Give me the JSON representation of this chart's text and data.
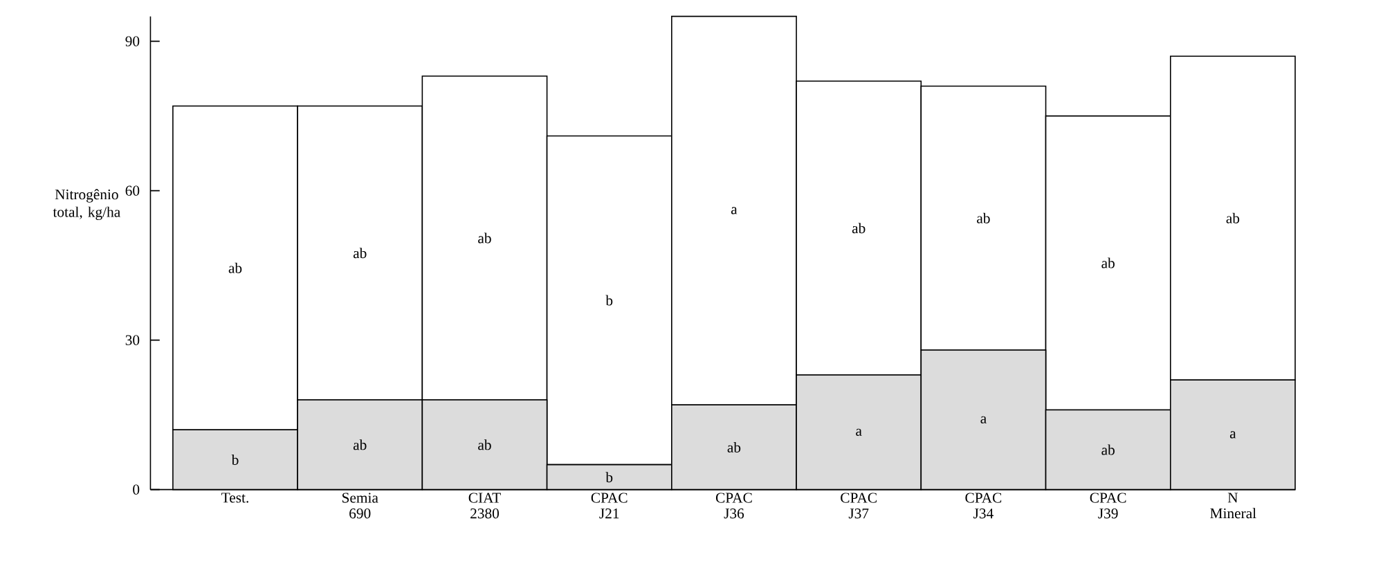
{
  "chart_data": {
    "type": "bar",
    "stacked": true,
    "ylabel": "Nitrogênio total, kg/ha",
    "categories": [
      "Test.",
      "Semia 690",
      "CIAT 2380",
      "CPAC J21",
      "CPAC J36",
      "CPAC J37",
      "CPAC J34",
      "CPAC J39",
      "N Mineral"
    ],
    "series": [
      {
        "color": "#dcdcdc",
        "values": [
          12,
          18,
          18,
          5,
          17,
          23,
          28,
          16,
          22
        ],
        "value_labels": [
          "b",
          "ab",
          "ab",
          "b",
          "ab",
          "a",
          "a",
          "ab",
          "a"
        ]
      },
      {
        "color": "#ffffff",
        "values": [
          65,
          59,
          65,
          66,
          78,
          59,
          53,
          59,
          65
        ],
        "value_labels": [
          "ab",
          "ab",
          "ab",
          "b",
          "a",
          "ab",
          "ab",
          "ab",
          "ab"
        ]
      }
    ],
    "ylim": [
      0,
      95
    ],
    "yticks": [
      0,
      30,
      60,
      90
    ]
  }
}
